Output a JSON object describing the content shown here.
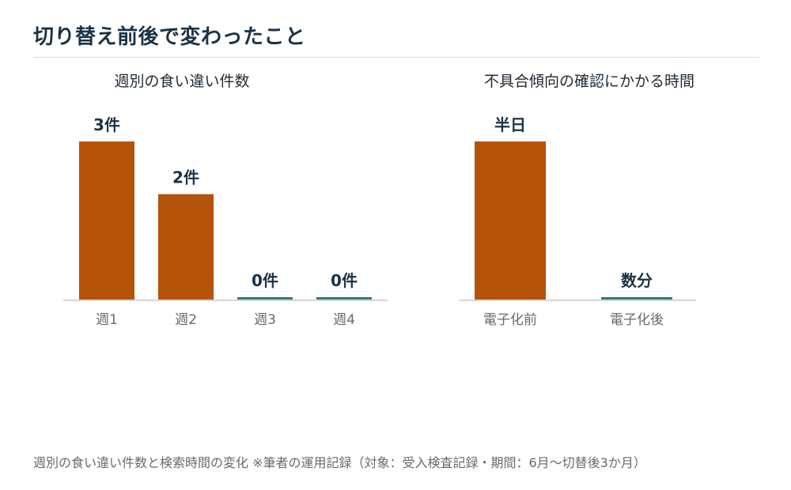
{
  "page": {
    "title": "切り替え前後で変わったこと",
    "footnote": "週別の食い違い件数と検索時間の変化 ※筆者の運用記録（対象：受入検査記録・期間：6月～切替後3か月）"
  },
  "colors": {
    "accent": "#b5530b",
    "teal": "#2a7f73",
    "axis": "#c8c8c8",
    "label": "#666a6e",
    "value": "#1b3247"
  },
  "chart_data": [
    {
      "type": "bar",
      "title": "週別の食い違い件数",
      "categories": [
        "週1",
        "週2",
        "週3",
        "週4"
      ],
      "values": [
        3,
        2,
        0,
        0
      ],
      "value_labels": [
        "3件",
        "2件",
        "0件",
        "0件"
      ],
      "unit": "件",
      "ylim": [
        0,
        3
      ],
      "grid": false
    },
    {
      "type": "bar",
      "title": "不具合傾向の確認にかかる時間",
      "categories": [
        "電子化前",
        "電子化後"
      ],
      "values": [
        0.5,
        0.003
      ],
      "value_labels": [
        "半日",
        "数分"
      ],
      "unit": "日",
      "ylim": [
        0,
        0.5
      ],
      "grid": false
    }
  ]
}
